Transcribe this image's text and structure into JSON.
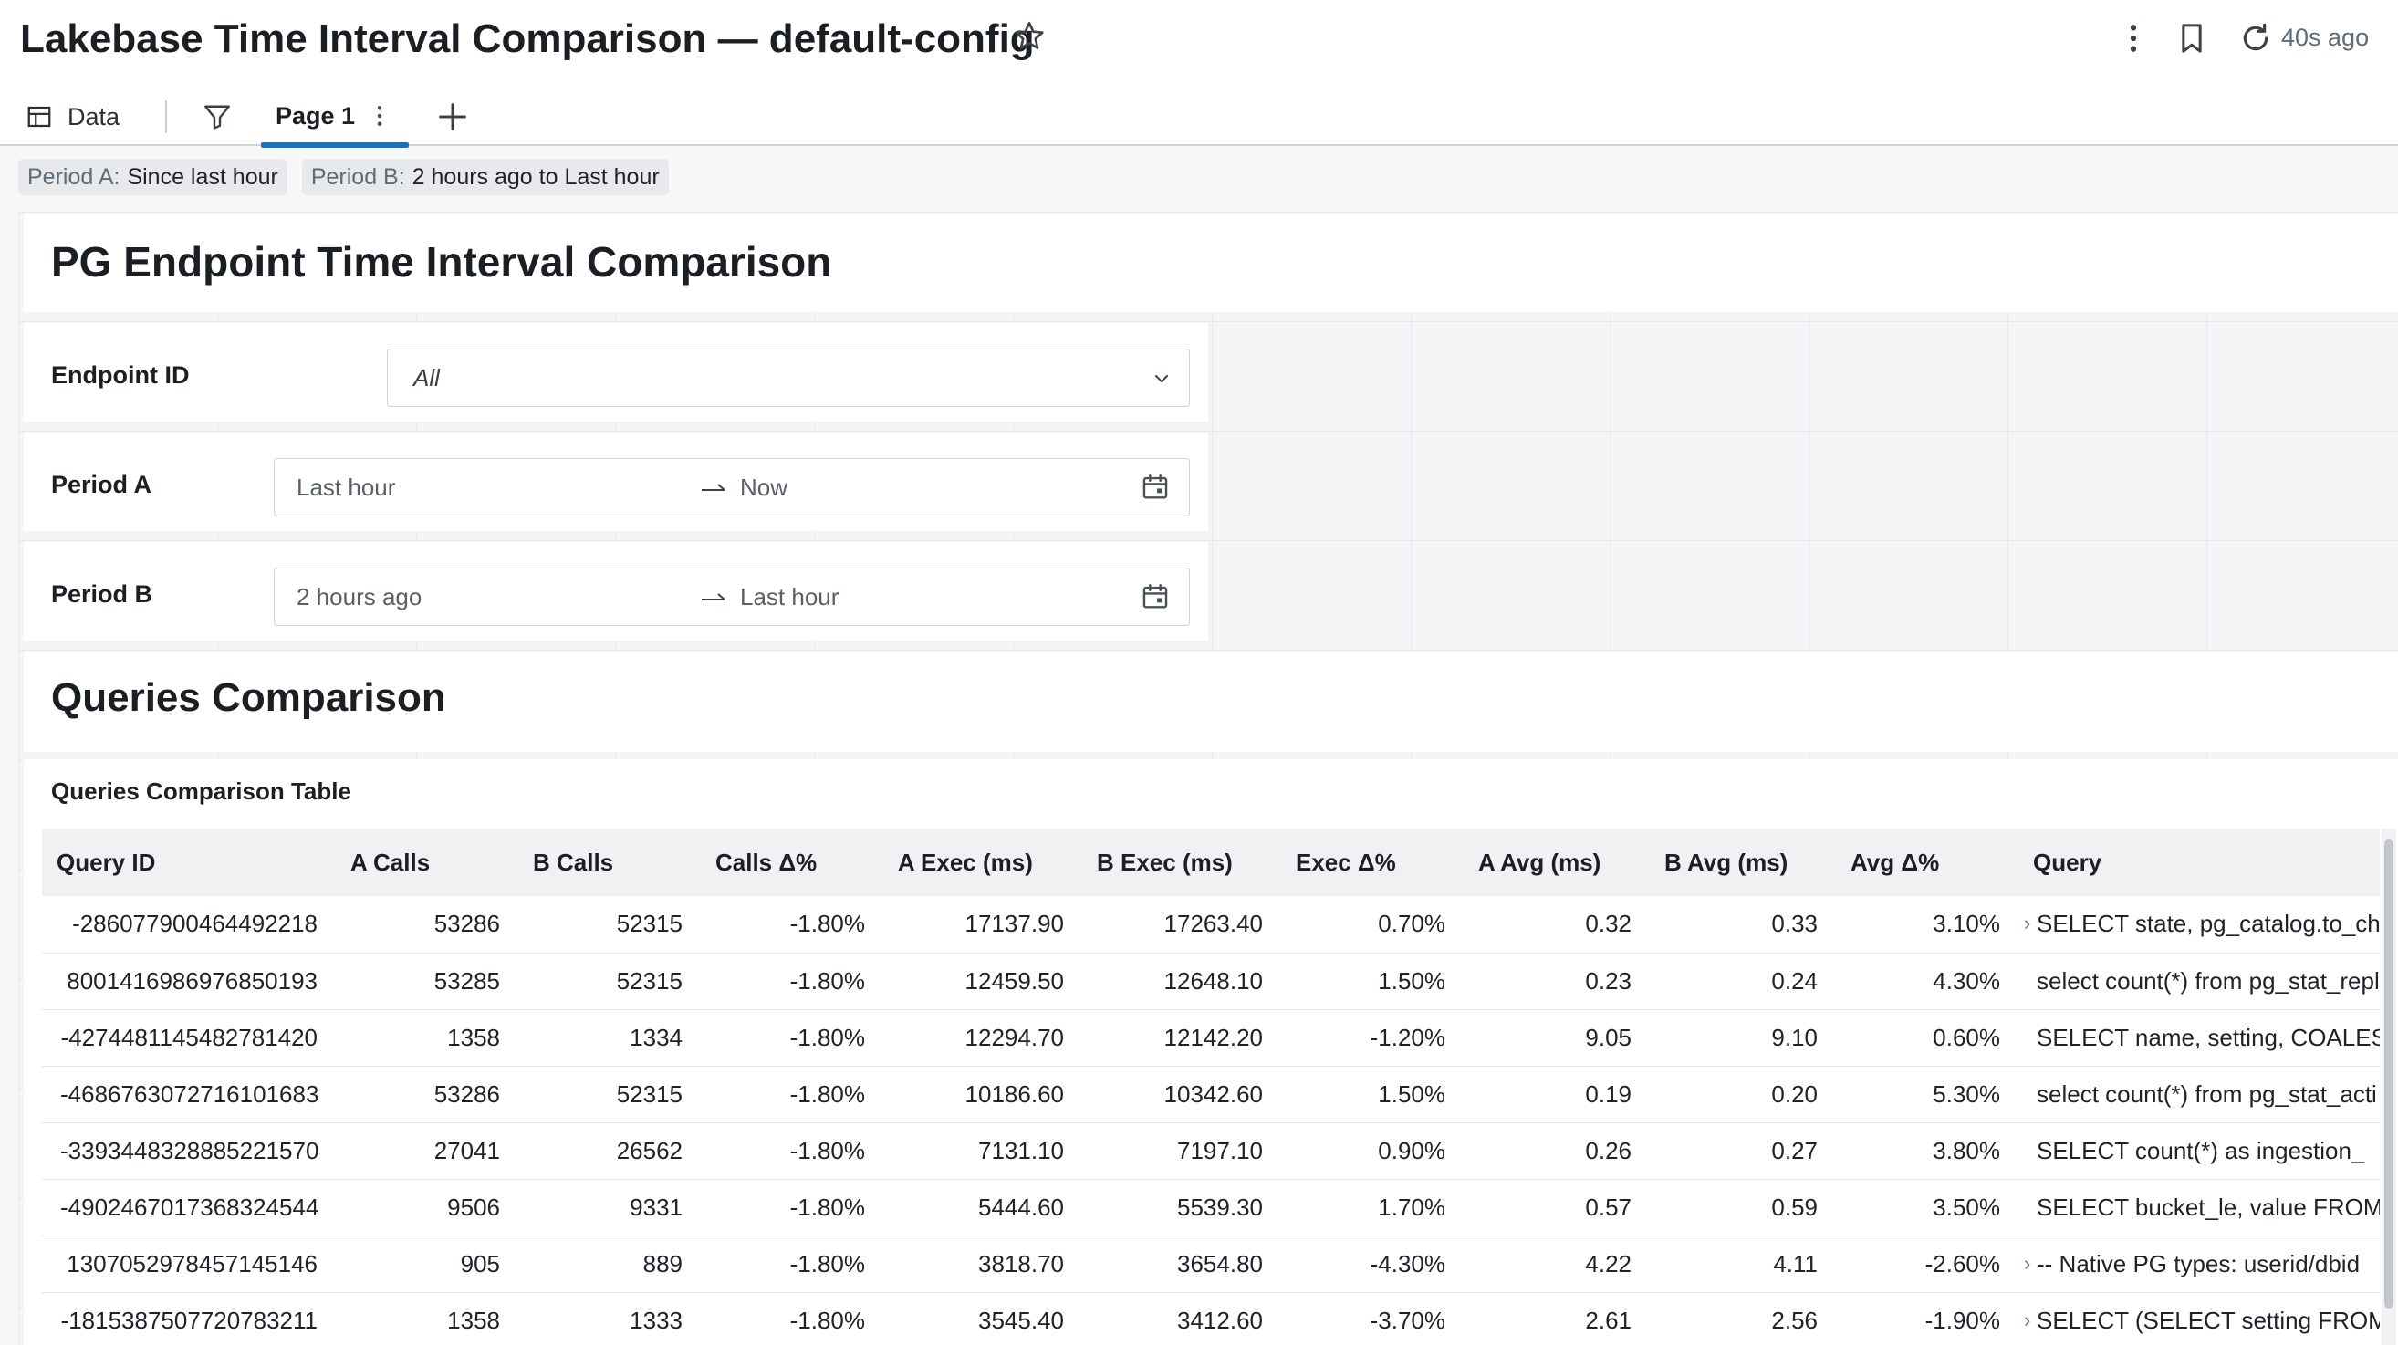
{
  "header": {
    "title": "Lakebase Time Interval Comparison — default-config",
    "refresh_text": "40s ago"
  },
  "tabs": {
    "data_label": "Data",
    "page_label": "Page 1"
  },
  "chips": [
    {
      "key": "Period A:",
      "value": "Since last hour"
    },
    {
      "key": "Period B:",
      "value": "2 hours ago to Last hour"
    }
  ],
  "sections": {
    "endpoint_title": "PG Endpoint Time Interval Comparison",
    "queries_title": "Queries Comparison",
    "table_title": "Queries Comparison Table"
  },
  "filters": {
    "endpoint": {
      "label": "Endpoint ID",
      "value": "All"
    },
    "period_a": {
      "label": "Period A",
      "from": "Last hour",
      "to": "Now"
    },
    "period_b": {
      "label": "Period B",
      "from": "2 hours ago",
      "to": "Last hour"
    }
  },
  "table": {
    "columns": [
      "Query ID",
      "A Calls",
      "B Calls",
      "Calls Δ%",
      "A Exec (ms)",
      "B Exec (ms)",
      "Exec Δ%",
      "A Avg (ms)",
      "B Avg (ms)",
      "Avg Δ%",
      "Query"
    ],
    "rows": [
      [
        "-286077900464492218",
        "53286",
        "52315",
        "-1.80%",
        "17137.90",
        "17263.40",
        "0.70%",
        "0.32",
        "0.33",
        "3.10%",
        "SELECT state, pg_catalog.to_char",
        true
      ],
      [
        "8001416986976850193",
        "53285",
        "52315",
        "-1.80%",
        "12459.50",
        "12648.10",
        "1.50%",
        "0.23",
        "0.24",
        "4.30%",
        "select count(*) from pg_stat_repl",
        false
      ],
      [
        "-4274481145482781420",
        "1358",
        "1334",
        "-1.80%",
        "12294.70",
        "12142.20",
        "-1.20%",
        "9.05",
        "9.10",
        "0.60%",
        "SELECT name, setting, COALESCE",
        false
      ],
      [
        "-4686763072716101683",
        "53286",
        "52315",
        "-1.80%",
        "10186.60",
        "10342.60",
        "1.50%",
        "0.19",
        "0.20",
        "5.30%",
        "select count(*) from pg_stat_acti",
        false
      ],
      [
        "-3393448328885221570",
        "27041",
        "26562",
        "-1.80%",
        "7131.10",
        "7197.10",
        "0.90%",
        "0.26",
        "0.27",
        "3.80%",
        "SELECT count(*) as ingestion_",
        false
      ],
      [
        "-4902467017368324544",
        "9506",
        "9331",
        "-1.80%",
        "5444.60",
        "5539.30",
        "1.70%",
        "0.57",
        "0.59",
        "3.50%",
        "SELECT bucket_le, value FROM",
        false
      ],
      [
        "1307052978457145146",
        "905",
        "889",
        "-1.80%",
        "3818.70",
        "3654.80",
        "-4.30%",
        "4.22",
        "4.11",
        "-2.60%",
        "-- Native PG types: userid/dbid",
        true
      ],
      [
        "-1815387507720783211",
        "1358",
        "1333",
        "-1.80%",
        "3545.40",
        "3412.60",
        "-3.70%",
        "2.61",
        "2.56",
        "-1.90%",
        "SELECT (SELECT setting FROM",
        true
      ]
    ]
  }
}
